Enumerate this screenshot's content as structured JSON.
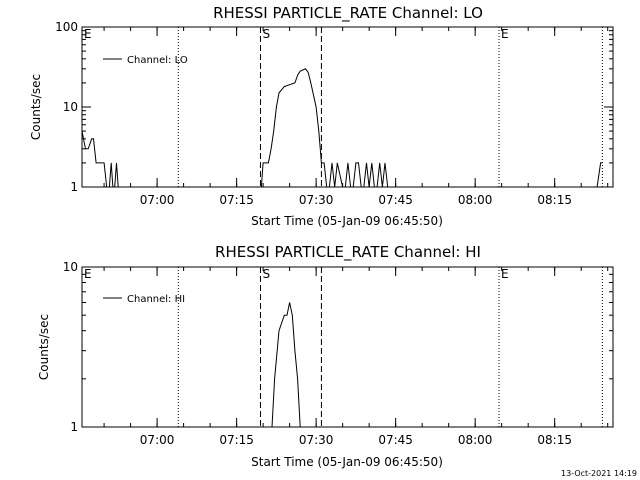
{
  "footer": "13-Oct-2021 14:19",
  "chart_data": [
    {
      "type": "line",
      "title": "RHESSI PARTICLE_RATE Channel: LO",
      "xlabel": "Start Time (05-Jan-09 06:45:50)",
      "ylabel": "Counts/sec",
      "yscale": "log",
      "ylim": [
        1,
        100
      ],
      "yticks": [
        1,
        10,
        100
      ],
      "ytick_labels": [
        "1",
        "10",
        "100"
      ],
      "xlim": [
        "06:45:50",
        "08:26:00"
      ],
      "xticks": [
        "07:00",
        "07:15",
        "07:30",
        "07:45",
        "08:00",
        "08:15"
      ],
      "legend": {
        "placement": "top-left",
        "entries": [
          "Channel: LO"
        ]
      },
      "markers": [
        {
          "label": "E",
          "time": "06:45:50",
          "style": "none"
        },
        {
          "label": "",
          "time": "07:04:00",
          "style": "dotted"
        },
        {
          "label": "S",
          "time": "07:19:30",
          "style": "dashed"
        },
        {
          "label": "",
          "time": "07:31:00",
          "style": "dashed"
        },
        {
          "label": "E",
          "time": "08:04:30",
          "style": "dotted"
        },
        {
          "label": "",
          "time": "08:24:00",
          "style": "dotted"
        }
      ],
      "series": [
        {
          "name": "Channel: LO",
          "x": [
            "06:45:50",
            "06:46:30",
            "06:47:00",
            "06:47:40",
            "06:48:00",
            "06:48:30",
            "06:49:00",
            "06:49:30",
            "06:50:00",
            "06:50:30",
            "06:51:00",
            "06:51:20",
            "06:51:40",
            "06:52:00",
            "06:52:20",
            "06:52:40",
            "06:53:00",
            "07:19:00",
            "07:19:40",
            "07:20:00",
            "07:21:00",
            "07:21:30",
            "07:22:00",
            "07:22:30",
            "07:23:00",
            "07:24:00",
            "07:25:00",
            "07:26:00",
            "07:26:30",
            "07:27:00",
            "07:28:00",
            "07:28:30",
            "07:29:00",
            "07:30:00",
            "07:30:30",
            "07:31:00",
            "07:31:30",
            "07:32:00",
            "07:32:30",
            "07:33:00",
            "07:33:30",
            "07:34:00",
            "07:35:00",
            "07:35:30",
            "07:36:00",
            "07:36:30",
            "07:37:00",
            "07:37:30",
            "07:38:00",
            "07:38:30",
            "07:39:00",
            "07:39:30",
            "07:40:00",
            "07:40:30",
            "07:41:00",
            "07:41:30",
            "07:42:00",
            "07:42:30",
            "07:43:00",
            "07:43:30",
            "08:23:00",
            "08:23:40",
            "08:24:00"
          ],
          "y": [
            5,
            3,
            3,
            4,
            4,
            2,
            2,
            2,
            2,
            1,
            1,
            2,
            1,
            1,
            2,
            1,
            1,
            1,
            1,
            2,
            2,
            3,
            5,
            10,
            15,
            18,
            19,
            20,
            25,
            28,
            30,
            27,
            20,
            10,
            5,
            2,
            2,
            1,
            1,
            2,
            1,
            2,
            1,
            1,
            2,
            1,
            1,
            2,
            2,
            1,
            1,
            2,
            1,
            2,
            1,
            1,
            2,
            1,
            2,
            1,
            1,
            2,
            2
          ]
        }
      ]
    },
    {
      "type": "line",
      "title": "RHESSI PARTICLE_RATE Channel: HI",
      "xlabel": "Start Time (05-Jan-09 06:45:50)",
      "ylabel": "Counts/sec",
      "yscale": "log",
      "ylim": [
        1,
        10
      ],
      "yticks": [
        1,
        10
      ],
      "ytick_labels": [
        "1",
        "10"
      ],
      "xlim": [
        "06:45:50",
        "08:26:00"
      ],
      "xticks": [
        "07:00",
        "07:15",
        "07:30",
        "07:45",
        "08:00",
        "08:15"
      ],
      "legend": {
        "placement": "top-left",
        "entries": [
          "Channel: HI"
        ]
      },
      "markers": [
        {
          "label": "E",
          "time": "06:45:50",
          "style": "none"
        },
        {
          "label": "",
          "time": "07:04:00",
          "style": "dotted"
        },
        {
          "label": "S",
          "time": "07:19:30",
          "style": "dashed"
        },
        {
          "label": "",
          "time": "07:31:00",
          "style": "dashed"
        },
        {
          "label": "E",
          "time": "08:04:30",
          "style": "dotted"
        },
        {
          "label": "",
          "time": "08:24:00",
          "style": "dotted"
        }
      ],
      "series": [
        {
          "name": "Channel: HI",
          "x": [
            "07:21:40",
            "07:22:10",
            "07:23:00",
            "07:24:00",
            "07:24:30",
            "07:25:00",
            "07:25:30",
            "07:26:00",
            "07:26:30",
            "07:27:00"
          ],
          "y": [
            1,
            2,
            4,
            5,
            5,
            6,
            5,
            3,
            2,
            1
          ]
        }
      ]
    }
  ]
}
